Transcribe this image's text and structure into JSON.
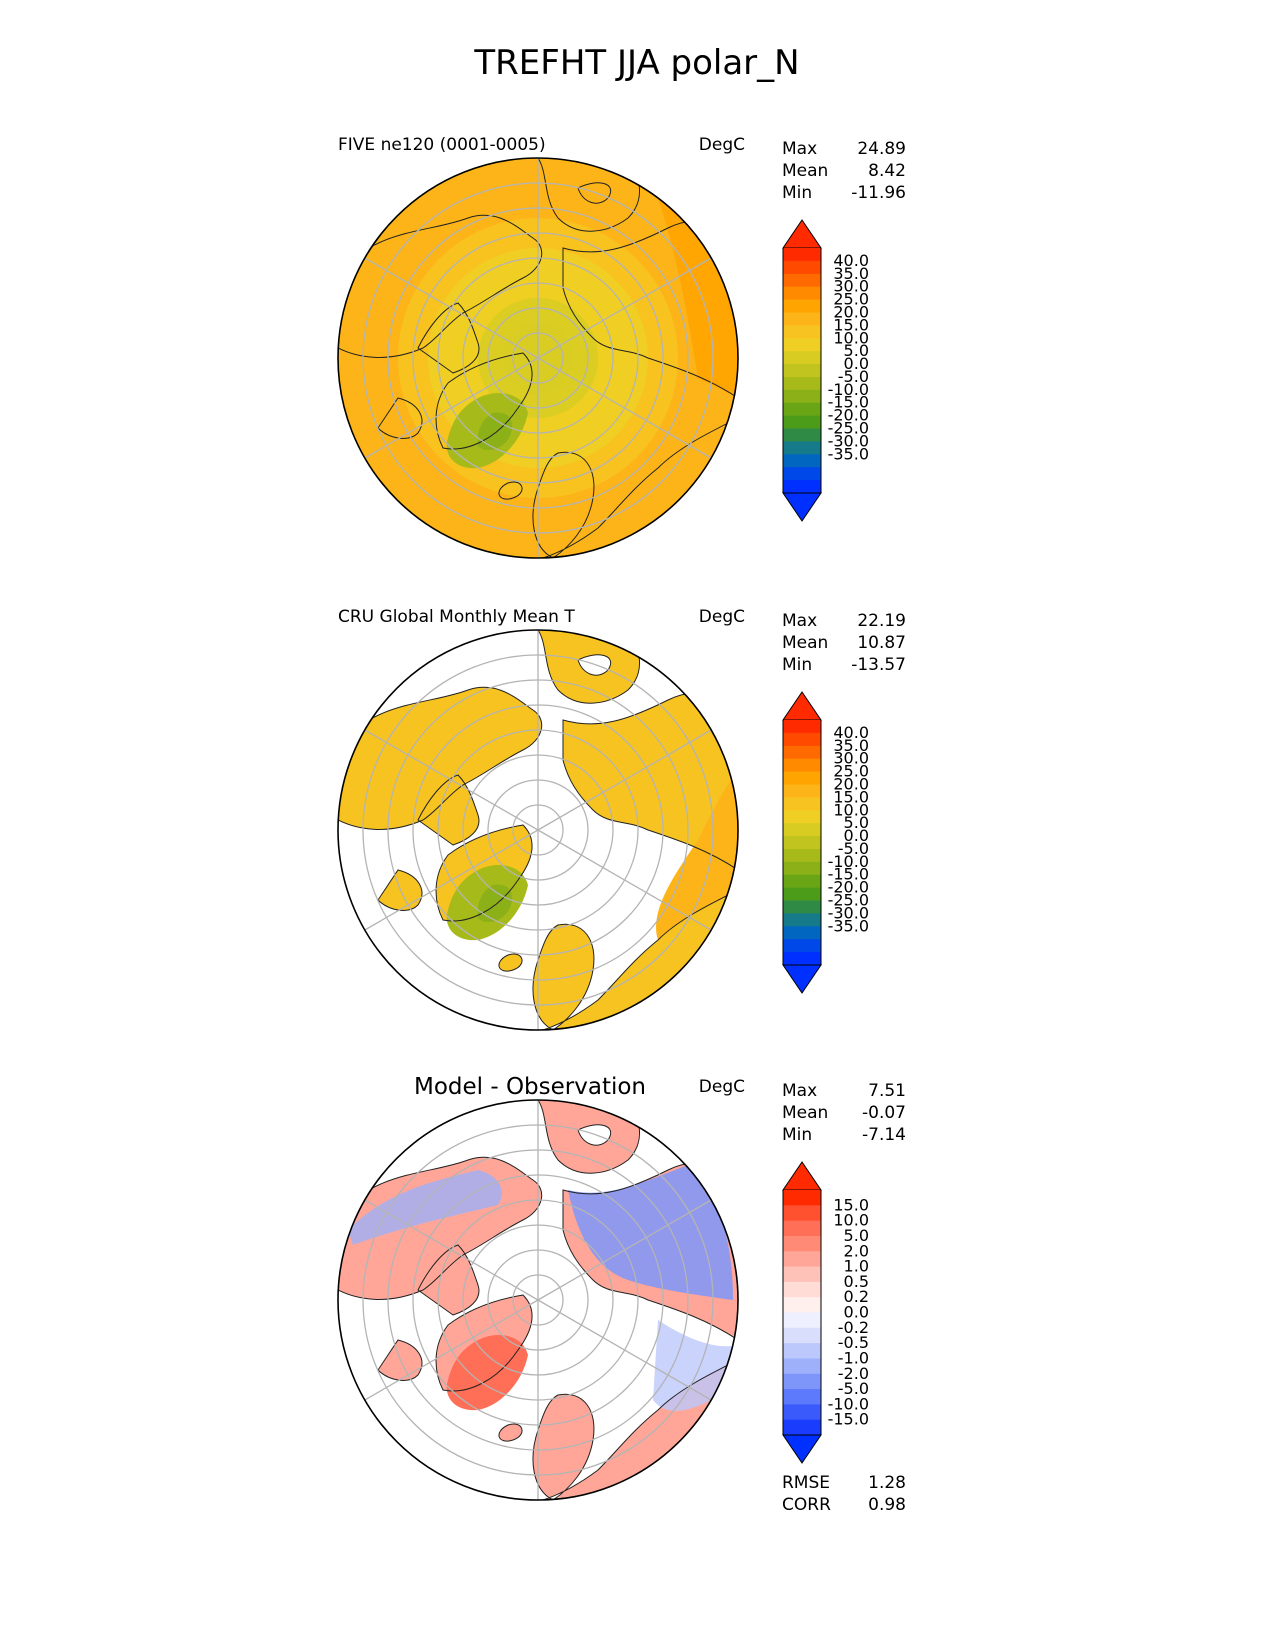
{
  "title": "TREFHT JJA polar_N",
  "colors": {
    "map_outline": "#000000",
    "gridline": "#b4b4b4",
    "coast": "#222222",
    "ocean_missing": "#ffffff"
  },
  "panels": [
    {
      "id": "model",
      "left_title": "FIVE ne120 (0001-0005)",
      "center_title": "",
      "units": "DegC",
      "stats": [
        {
          "label": "Max",
          "value": "24.89"
        },
        {
          "label": "Mean",
          "value": "8.42"
        },
        {
          "label": "Min",
          "value": "-11.96"
        }
      ],
      "colorbar": {
        "ticks": [
          "40.0",
          "35.0",
          "30.0",
          "25.0",
          "20.0",
          "15.0",
          "10.0",
          "5.0",
          "0.0",
          "-5.0",
          "-10.0",
          "-15.0",
          "-20.0",
          "-25.0",
          "-30.0",
          "-35.0"
        ],
        "colors": [
          "#ff2a00",
          "#ff4a00",
          "#ff6a00",
          "#ff8a00",
          "#ffa400",
          "#fcb418",
          "#f7c320",
          "#f0cf24",
          "#d8cc22",
          "#c1c41e",
          "#a6bb1a",
          "#8cb018",
          "#6aa516",
          "#4c9c1a",
          "#2f8a46",
          "#157a8a",
          "#0066c0",
          "#0048e8",
          "#0030ff"
        ],
        "over_color": "#ff2a00",
        "under_color": "#0030ff"
      },
      "footer_stats": [],
      "field_type": "abs",
      "field": {
        "pole_value": 2.5,
        "ocean_base": 17,
        "land_boost": 0,
        "greenland_value": -6,
        "mask_ocean": false
      }
    },
    {
      "id": "obs",
      "left_title": "CRU Global Monthly Mean T",
      "center_title": "",
      "units": "DegC",
      "stats": [
        {
          "label": "Max",
          "value": "22.19"
        },
        {
          "label": "Mean",
          "value": "10.87"
        },
        {
          "label": "Min",
          "value": "-13.57"
        }
      ],
      "colorbar": {
        "ticks": [
          "40.0",
          "35.0",
          "30.0",
          "25.0",
          "20.0",
          "15.0",
          "10.0",
          "5.0",
          "0.0",
          "-5.0",
          "-10.0",
          "-15.0",
          "-20.0",
          "-25.0",
          "-30.0",
          "-35.0"
        ],
        "colors": [
          "#ff2a00",
          "#ff4a00",
          "#ff6a00",
          "#ff8a00",
          "#ffa400",
          "#fcb418",
          "#f7c320",
          "#f0cf24",
          "#d8cc22",
          "#c1c41e",
          "#a6bb1a",
          "#8cb018",
          "#6aa516",
          "#4c9c1a",
          "#2f8a46",
          "#157a8a",
          "#0066c0",
          "#0048e8",
          "#0030ff"
        ],
        "over_color": "#ff2a00",
        "under_color": "#0030ff"
      },
      "footer_stats": [],
      "field_type": "abs",
      "field": {
        "pole_value": 2.5,
        "ocean_base": 17,
        "land_boost": 0,
        "greenland_value": -7,
        "mask_ocean": true
      }
    },
    {
      "id": "diff",
      "left_title": "",
      "center_title": "Model - Observation",
      "units": "DegC",
      "stats": [
        {
          "label": "Max",
          "value": "7.51"
        },
        {
          "label": "Mean",
          "value": "-0.07"
        },
        {
          "label": "Min",
          "value": "-7.14"
        }
      ],
      "colorbar": {
        "ticks": [
          "15.0",
          "10.0",
          "5.0",
          "2.0",
          "1.0",
          "0.5",
          "0.2",
          "0.0",
          "-0.2",
          "-0.5",
          "-1.0",
          "-2.0",
          "-5.0",
          "-10.0",
          "-15.0"
        ],
        "colors": [
          "#ff2a00",
          "#ff5030",
          "#ff6e56",
          "#ff8a76",
          "#ffa698",
          "#ffc2b8",
          "#ffdcd6",
          "#fff0ee",
          "#eef0ff",
          "#d8defc",
          "#bcc8fb",
          "#9eb0fa",
          "#7e96fa",
          "#5c7afb",
          "#3a5afc",
          "#1a3cfd"
        ],
        "over_color": "#ff2a00",
        "under_color": "#0030ff"
      },
      "footer_stats": [
        {
          "label": "RMSE",
          "value": "1.28"
        },
        {
          "label": "CORR",
          "value": "0.98"
        }
      ],
      "field_type": "diff",
      "field": {
        "mask_ocean": true
      }
    }
  ]
}
